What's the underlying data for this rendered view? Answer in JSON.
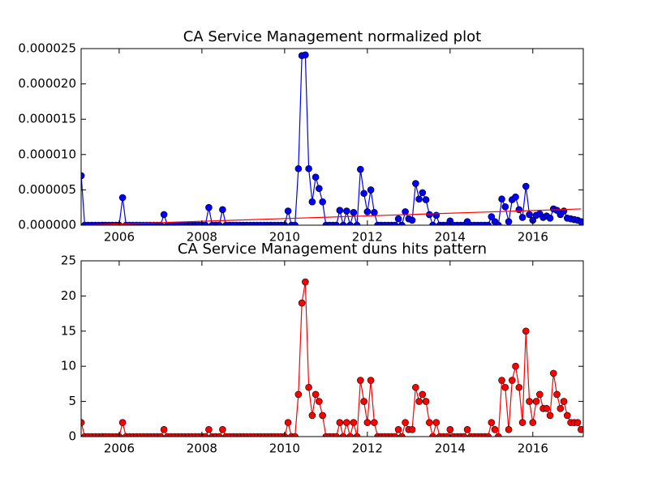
{
  "chart_data": [
    {
      "type": "line",
      "title": "CA Service Management normalized plot",
      "x": [
        2005.083,
        2005.167,
        2005.25,
        2005.333,
        2005.417,
        2005.5,
        2005.583,
        2005.667,
        2005.75,
        2005.833,
        2005.917,
        2006,
        2006.083,
        2006.167,
        2006.25,
        2006.333,
        2006.417,
        2006.5,
        2006.583,
        2006.667,
        2006.75,
        2006.833,
        2006.917,
        2007,
        2007.083,
        2007.167,
        2007.25,
        2007.333,
        2007.417,
        2007.5,
        2007.583,
        2007.667,
        2007.75,
        2007.833,
        2007.917,
        2008,
        2008.083,
        2008.167,
        2008.25,
        2008.333,
        2008.417,
        2008.5,
        2008.583,
        2008.667,
        2008.75,
        2008.833,
        2008.917,
        2009,
        2009.083,
        2009.167,
        2009.25,
        2009.333,
        2009.417,
        2009.5,
        2009.583,
        2009.667,
        2009.75,
        2009.833,
        2009.917,
        2010,
        2010.083,
        2010.167,
        2010.25,
        2010.333,
        2010.417,
        2010.5,
        2010.583,
        2010.667,
        2010.75,
        2010.833,
        2010.917,
        2011,
        2011.083,
        2011.167,
        2011.25,
        2011.333,
        2011.417,
        2011.5,
        2011.583,
        2011.667,
        2011.75,
        2011.833,
        2011.917,
        2012,
        2012.083,
        2012.167,
        2012.25,
        2012.333,
        2012.417,
        2012.5,
        2012.583,
        2012.667,
        2012.75,
        2012.833,
        2012.917,
        2013,
        2013.083,
        2013.167,
        2013.25,
        2013.333,
        2013.417,
        2013.5,
        2013.583,
        2013.667,
        2013.75,
        2013.833,
        2013.917,
        2014,
        2014.083,
        2014.167,
        2014.25,
        2014.333,
        2014.417,
        2014.5,
        2014.583,
        2014.667,
        2014.75,
        2014.833,
        2014.917,
        2015,
        2015.083,
        2015.167,
        2015.25,
        2015.333,
        2015.417,
        2015.5,
        2015.583,
        2015.667,
        2015.75,
        2015.833,
        2015.917,
        2016,
        2016.083,
        2016.167,
        2016.25,
        2016.333,
        2016.417,
        2016.5,
        2016.583,
        2016.667,
        2016.75,
        2016.833,
        2016.917,
        2017,
        2017.083,
        2017.167
      ],
      "series": [
        {
          "color": "#0000ff",
          "values": [
            7e-06,
            0,
            0,
            0,
            0,
            0,
            0,
            0,
            0,
            0,
            0,
            0,
            3.9e-06,
            0,
            0,
            0,
            0,
            0,
            0,
            0,
            0,
            0,
            0,
            0,
            1.5e-06,
            0,
            0,
            0,
            0,
            0,
            0,
            0,
            0,
            0,
            0,
            0,
            0,
            2.5e-06,
            0,
            0,
            0,
            2.2e-06,
            0,
            0,
            0,
            0,
            0,
            0,
            0,
            0,
            0,
            0,
            0,
            0,
            0,
            0,
            0,
            0,
            0,
            0,
            2e-06,
            0,
            0,
            8e-06,
            2.4e-05,
            2.41e-05,
            8e-06,
            3.3e-06,
            6.8e-06,
            5.2e-06,
            3.3e-06,
            0,
            0,
            0,
            0,
            2.1e-06,
            0,
            2e-06,
            0,
            1.8e-06,
            0,
            7.9e-06,
            4.5e-06,
            1.9e-06,
            5e-06,
            1.8e-06,
            0,
            0,
            0,
            0,
            0,
            0,
            9e-07,
            0,
            1.9e-06,
            9e-07,
            7e-07,
            5.9e-06,
            3.7e-06,
            4.6e-06,
            3.6e-06,
            1.5e-06,
            0,
            1.4e-06,
            0,
            0,
            0,
            6e-07,
            0,
            0,
            0,
            0,
            5e-07,
            0,
            0,
            0,
            0,
            0,
            0,
            1.2e-06,
            5e-07,
            0,
            3.7e-06,
            2.6e-06,
            5e-07,
            3.6e-06,
            4e-06,
            2.2e-06,
            1.1e-06,
            5.5e-06,
            1.5e-06,
            7e-07,
            1.4e-06,
            1.6e-06,
            1.1e-06,
            1.3e-06,
            1e-06,
            2.3e-06,
            2.1e-06,
            1.5e-06,
            2e-06,
            1e-06,
            9e-07,
            8e-07,
            7e-07,
            5e-07
          ]
        }
      ],
      "trend": {
        "color": "#ff0000",
        "x": [
          2005.083,
          2017.167
        ],
        "values": [
          0,
          2.3e-06
        ]
      },
      "xlim": [
        2005.08,
        2017.22
      ],
      "xticks": [
        2006,
        2008,
        2010,
        2012,
        2014,
        2016
      ],
      "ylim": [
        0,
        2.5e-05
      ],
      "yticks": [
        {
          "value": 0,
          "label": "0.000000"
        },
        5e-06,
        {
          "value": 1e-05,
          "label": "0.000010"
        },
        {
          "value": 1.5e-05,
          "label": "0.000015"
        },
        {
          "value": 2e-05,
          "label": "0.000020"
        },
        2.5e-05
      ]
    },
    {
      "type": "line",
      "title": "CA Service Management duns hits pattern",
      "x": [
        2005.083,
        2005.167,
        2005.25,
        2005.333,
        2005.417,
        2005.5,
        2005.583,
        2005.667,
        2005.75,
        2005.833,
        2005.917,
        2006,
        2006.083,
        2006.167,
        2006.25,
        2006.333,
        2006.417,
        2006.5,
        2006.583,
        2006.667,
        2006.75,
        2006.833,
        2006.917,
        2007,
        2007.083,
        2007.167,
        2007.25,
        2007.333,
        2007.417,
        2007.5,
        2007.583,
        2007.667,
        2007.75,
        2007.833,
        2007.917,
        2008,
        2008.083,
        2008.167,
        2008.25,
        2008.333,
        2008.417,
        2008.5,
        2008.583,
        2008.667,
        2008.75,
        2008.833,
        2008.917,
        2009,
        2009.083,
        2009.167,
        2009.25,
        2009.333,
        2009.417,
        2009.5,
        2009.583,
        2009.667,
        2009.75,
        2009.833,
        2009.917,
        2010,
        2010.083,
        2010.167,
        2010.25,
        2010.333,
        2010.417,
        2010.5,
        2010.583,
        2010.667,
        2010.75,
        2010.833,
        2010.917,
        2011,
        2011.083,
        2011.167,
        2011.25,
        2011.333,
        2011.417,
        2011.5,
        2011.583,
        2011.667,
        2011.75,
        2011.833,
        2011.917,
        2012,
        2012.083,
        2012.167,
        2012.25,
        2012.333,
        2012.417,
        2012.5,
        2012.583,
        2012.667,
        2012.75,
        2012.833,
        2012.917,
        2013,
        2013.083,
        2013.167,
        2013.25,
        2013.333,
        2013.417,
        2013.5,
        2013.583,
        2013.667,
        2013.75,
        2013.833,
        2013.917,
        2014,
        2014.083,
        2014.167,
        2014.25,
        2014.333,
        2014.417,
        2014.5,
        2014.583,
        2014.667,
        2014.75,
        2014.833,
        2014.917,
        2015,
        2015.083,
        2015.167,
        2015.25,
        2015.333,
        2015.417,
        2015.5,
        2015.583,
        2015.667,
        2015.75,
        2015.833,
        2015.917,
        2016,
        2016.083,
        2016.167,
        2016.25,
        2016.333,
        2016.417,
        2016.5,
        2016.583,
        2016.667,
        2016.75,
        2016.833,
        2016.917,
        2017,
        2017.083,
        2017.167
      ],
      "series": [
        {
          "color": "#ff0000",
          "values": [
            2,
            0,
            0,
            0,
            0,
            0,
            0,
            0,
            0,
            0,
            0,
            0,
            2,
            0,
            0,
            0,
            0,
            0,
            0,
            0,
            0,
            0,
            0,
            0,
            1,
            0,
            0,
            0,
            0,
            0,
            0,
            0,
            0,
            0,
            0,
            0,
            0,
            1,
            0,
            0,
            0,
            1,
            0,
            0,
            0,
            0,
            0,
            0,
            0,
            0,
            0,
            0,
            0,
            0,
            0,
            0,
            0,
            0,
            0,
            0,
            2,
            0,
            0,
            6,
            19,
            22,
            7,
            3,
            6,
            5,
            3,
            0,
            0,
            0,
            0,
            2,
            0,
            2,
            0,
            2,
            0,
            8,
            5,
            2,
            8,
            2,
            0,
            0,
            0,
            0,
            0,
            0,
            1,
            0,
            2,
            1,
            1,
            7,
            5,
            6,
            5,
            2,
            0,
            2,
            0,
            0,
            0,
            1,
            0,
            0,
            0,
            0,
            1,
            0,
            0,
            0,
            0,
            0,
            0,
            2,
            1,
            0,
            8,
            7,
            1,
            8,
            10,
            7,
            2,
            15,
            5,
            2,
            5,
            6,
            4,
            4,
            3,
            9,
            6,
            4,
            5,
            3,
            2,
            2,
            2,
            1
          ]
        }
      ],
      "xlim": [
        2005.08,
        2017.22
      ],
      "xticks": [
        2006,
        2008,
        2010,
        2012,
        2014,
        2016
      ],
      "ylim": [
        0,
        25
      ],
      "yticks": [
        0,
        5,
        10,
        15,
        20,
        25
      ]
    }
  ]
}
